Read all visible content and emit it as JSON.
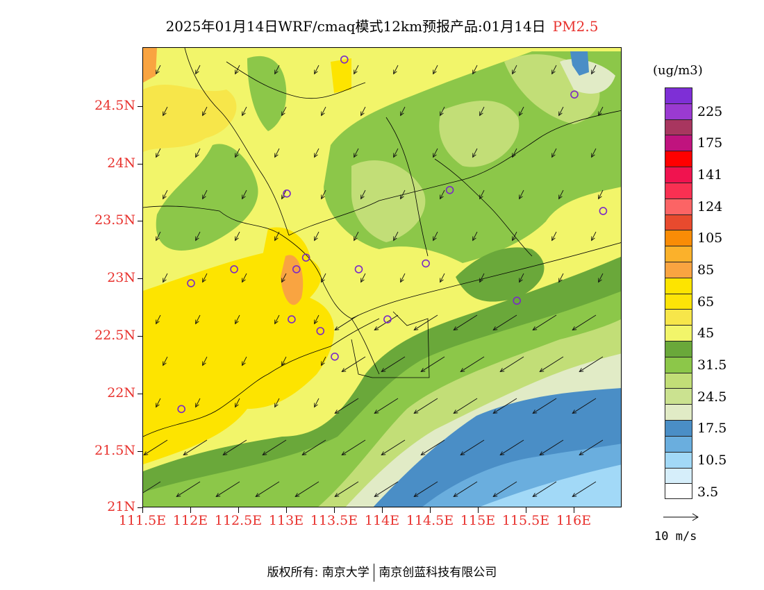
{
  "title": {
    "text": "2025年01月14日WRF/cmaq模式12km预报产品:01月14日",
    "pollutant": "PM2.5"
  },
  "axes": {
    "y_labels": [
      "24.5N",
      "24N",
      "23.5N",
      "23N",
      "22.5N",
      "22N",
      "21.5N",
      "21N"
    ],
    "x_labels": [
      "111.5E",
      "112E",
      "112.5E",
      "113E",
      "113.5E",
      "114E",
      "114.5E",
      "115E",
      "115.5E",
      "116E"
    ],
    "lon_range": [
      111.5,
      116.5
    ],
    "lat_range": [
      21.0,
      24.95
    ]
  },
  "legend": {
    "unit": "(ug/m3)",
    "labels": [
      "225",
      "175",
      "141",
      "124",
      "105",
      "85",
      "65",
      "45",
      "31.5",
      "24.5",
      "17.5",
      "10.5",
      "3.5"
    ],
    "colors": [
      "#7e2fd6",
      "#9a3ad1",
      "#a8365f",
      "#c0137e",
      "#ff0000",
      "#f0134f",
      "#f93052",
      "#fc6465",
      "#e84a2e",
      "#f98c06",
      "#fbb12b",
      "#f9a441",
      "#fde400",
      "#fde408",
      "#f7e64a",
      "#f2f56a",
      "#6aa83a",
      "#8cc749",
      "#c2de77",
      "#cbe290",
      "#e1ebc6",
      "#4a8ec6",
      "#6aaede",
      "#a2d9f7",
      "#d6eefa",
      "#ffffff"
    ]
  },
  "wind_reference": {
    "label": "10 m/s"
  },
  "stations": [
    {
      "lon": 113.0,
      "lat": 23.7
    },
    {
      "lon": 113.6,
      "lat": 24.85
    },
    {
      "lon": 116.0,
      "lat": 24.55
    },
    {
      "lon": 114.7,
      "lat": 23.73
    },
    {
      "lon": 116.3,
      "lat": 23.55
    },
    {
      "lon": 112.0,
      "lat": 22.93
    },
    {
      "lon": 112.45,
      "lat": 23.05
    },
    {
      "lon": 113.1,
      "lat": 23.05
    },
    {
      "lon": 113.2,
      "lat": 23.15
    },
    {
      "lon": 113.75,
      "lat": 23.05
    },
    {
      "lon": 114.45,
      "lat": 23.1
    },
    {
      "lon": 115.4,
      "lat": 22.78
    },
    {
      "lon": 113.05,
      "lat": 22.62
    },
    {
      "lon": 113.35,
      "lat": 22.52
    },
    {
      "lon": 114.05,
      "lat": 22.62
    },
    {
      "lon": 113.5,
      "lat": 22.3
    },
    {
      "lon": 111.9,
      "lat": 21.85
    }
  ],
  "copyright": {
    "prefix": "版权所有: 南京大学",
    "suffix": "南京创蓝科技有限公司"
  }
}
